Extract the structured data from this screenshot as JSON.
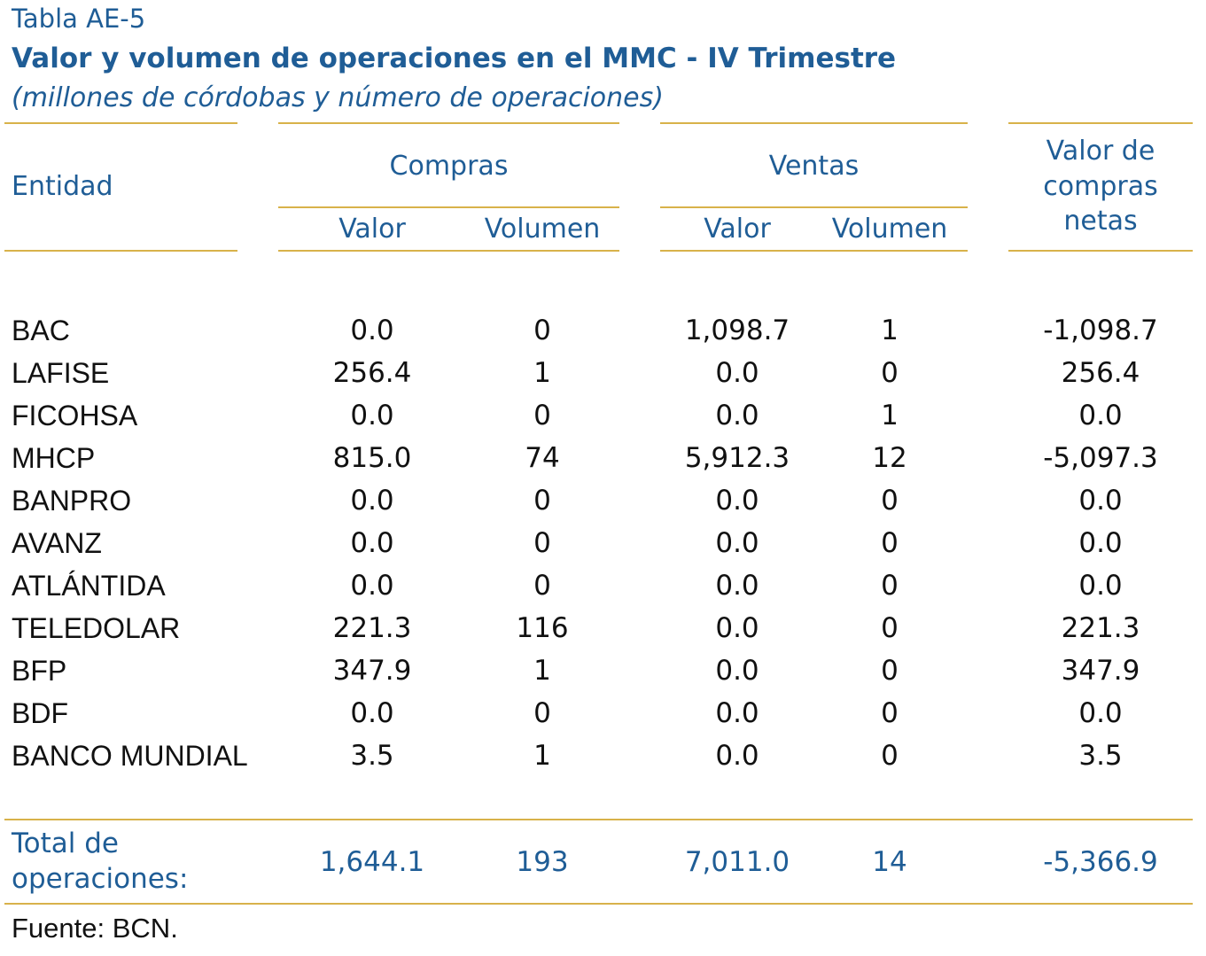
{
  "table": {
    "label": "Tabla AE-5",
    "title": "Valor y volumen de operaciones en el MMC - IV Trimestre",
    "subtitle": "(millones de córdobas y número de operaciones)",
    "headers": {
      "entidad": "Entidad",
      "compras": "Compras",
      "ventas": "Ventas",
      "valor": "Valor",
      "volumen": "Volumen",
      "netas_line1": "Valor de",
      "netas_line2": "compras",
      "netas_line3": "netas"
    },
    "rows": [
      {
        "entidad": "BAC",
        "c_valor": "0.0",
        "c_vol": "0",
        "v_valor": "1,098.7",
        "v_vol": "1",
        "netas": "-1,098.7"
      },
      {
        "entidad": "LAFISE",
        "c_valor": "256.4",
        "c_vol": "1",
        "v_valor": "0.0",
        "v_vol": "0",
        "netas": "256.4"
      },
      {
        "entidad": "FICOHSA",
        "c_valor": "0.0",
        "c_vol": "0",
        "v_valor": "0.0",
        "v_vol": "1",
        "netas": "0.0"
      },
      {
        "entidad": "MHCP",
        "c_valor": "815.0",
        "c_vol": "74",
        "v_valor": "5,912.3",
        "v_vol": "12",
        "netas": "-5,097.3"
      },
      {
        "entidad": "BANPRO",
        "c_valor": "0.0",
        "c_vol": "0",
        "v_valor": "0.0",
        "v_vol": "0",
        "netas": "0.0"
      },
      {
        "entidad": "AVANZ",
        "c_valor": "0.0",
        "c_vol": "0",
        "v_valor": "0.0",
        "v_vol": "0",
        "netas": "0.0"
      },
      {
        "entidad": "ATLÁNTIDA",
        "c_valor": "0.0",
        "c_vol": "0",
        "v_valor": "0.0",
        "v_vol": "0",
        "netas": "0.0"
      },
      {
        "entidad": "TELEDOLAR",
        "c_valor": "221.3",
        "c_vol": "116",
        "v_valor": "0.0",
        "v_vol": "0",
        "netas": "221.3"
      },
      {
        "entidad": "BFP",
        "c_valor": "347.9",
        "c_vol": "1",
        "v_valor": "0.0",
        "v_vol": "0",
        "netas": "347.9"
      },
      {
        "entidad": "BDF",
        "c_valor": "0.0",
        "c_vol": "0",
        "v_valor": "0.0",
        "v_vol": "0",
        "netas": "0.0"
      },
      {
        "entidad": "BANCO MUNDIAL",
        "c_valor": "3.5",
        "c_vol": "1",
        "v_valor": "0.0",
        "v_vol": "0",
        "netas": "3.5"
      }
    ],
    "total": {
      "label_line1": "Total de",
      "label_line2": "operaciones:",
      "c_valor": "1,644.1",
      "c_vol": "193",
      "v_valor": "7,011.0",
      "v_vol": "14",
      "netas": "-5,366.9"
    },
    "source": "Fuente: BCN.",
    "colors": {
      "text_blue": "#1f5d96",
      "rule_gold": "#d8b24a",
      "body_text": "#111111"
    }
  }
}
